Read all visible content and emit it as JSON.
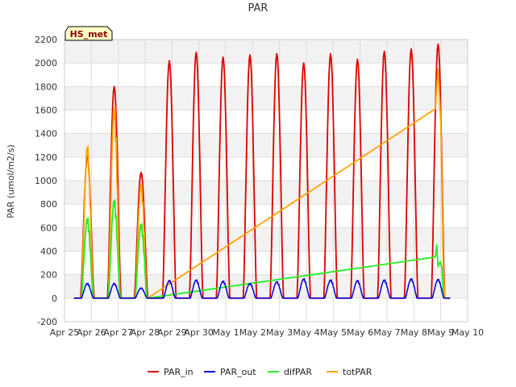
{
  "chart_data": {
    "type": "line",
    "title": "PAR",
    "xlabel": "",
    "ylabel": "PAR (umol/m2/s)",
    "badge": "HS_met",
    "xlim": [
      0,
      15
    ],
    "ylim": [
      -200,
      2200
    ],
    "yticks": [
      -200,
      0,
      200,
      400,
      600,
      800,
      1000,
      1200,
      1400,
      1600,
      1800,
      2000,
      2200
    ],
    "xticks": [
      {
        "value": 0,
        "label": "Apr 25"
      },
      {
        "value": 1,
        "label": "Apr 26"
      },
      {
        "value": 2,
        "label": "Apr 27"
      },
      {
        "value": 3,
        "label": "Apr 28"
      },
      {
        "value": 4,
        "label": "Apr 29"
      },
      {
        "value": 5,
        "label": "Apr 30"
      },
      {
        "value": 6,
        "label": "May 1"
      },
      {
        "value": 7,
        "label": "May 2"
      },
      {
        "value": 8,
        "label": "May 3"
      },
      {
        "value": 9,
        "label": "May 4"
      },
      {
        "value": 10,
        "label": "May 5"
      },
      {
        "value": 11,
        "label": "May 6"
      },
      {
        "value": 12,
        "label": "May 7"
      },
      {
        "value": 13,
        "label": "May 8"
      },
      {
        "value": 14,
        "label": "May 9"
      },
      {
        "value": 15,
        "label": "May 10"
      }
    ],
    "colors": {
      "PAR_in": "#dd0000",
      "PAR_out": "#0000dd",
      "difPAR": "#22ee22",
      "totPAR": "#ffa500"
    },
    "legend": [
      {
        "name": "PAR_in",
        "color": "#dd0000"
      },
      {
        "name": "PAR_out",
        "color": "#0000dd"
      },
      {
        "name": "difPAR",
        "color": "#22ee22"
      },
      {
        "name": "totPAR",
        "color": "#ffa500"
      }
    ],
    "series": [
      {
        "name": "PAR_in",
        "daily_peaks": [
          {
            "day": 0.85,
            "peak": 1200
          },
          {
            "day": 1.85,
            "peak": 1800
          },
          {
            "day": 2.85,
            "peak": 1070
          },
          {
            "day": 3.9,
            "peak": 2020
          },
          {
            "day": 4.9,
            "peak": 2090
          },
          {
            "day": 5.9,
            "peak": 2050
          },
          {
            "day": 6.9,
            "peak": 2070
          },
          {
            "day": 7.9,
            "peak": 2080
          },
          {
            "day": 8.9,
            "peak": 2000
          },
          {
            "day": 9.9,
            "peak": 2080
          },
          {
            "day": 10.9,
            "peak": 2030
          },
          {
            "day": 11.9,
            "peak": 2100
          },
          {
            "day": 12.9,
            "peak": 2120
          },
          {
            "day": 13.9,
            "peak": 2160
          }
        ]
      },
      {
        "name": "PAR_out",
        "daily_peaks": [
          {
            "day": 0.85,
            "peak": 130
          },
          {
            "day": 1.85,
            "peak": 130
          },
          {
            "day": 2.85,
            "peak": 90
          },
          {
            "day": 3.9,
            "peak": 155
          },
          {
            "day": 4.9,
            "peak": 160
          },
          {
            "day": 5.9,
            "peak": 150
          },
          {
            "day": 6.9,
            "peak": 130
          },
          {
            "day": 7.9,
            "peak": 145
          },
          {
            "day": 8.9,
            "peak": 170
          },
          {
            "day": 9.9,
            "peak": 160
          },
          {
            "day": 10.9,
            "peak": 155
          },
          {
            "day": 11.9,
            "peak": 160
          },
          {
            "day": 12.9,
            "peak": 170
          },
          {
            "day": 13.9,
            "peak": 165
          }
        ]
      },
      {
        "name": "difPAR",
        "daily_peaks": [
          {
            "day": 0.85,
            "peak": 700
          },
          {
            "day": 1.85,
            "peak": 860
          },
          {
            "day": 2.85,
            "peak": 650
          }
        ],
        "linear_segment": {
          "x": [
            3.1,
            13.8
          ],
          "y": [
            0,
            350
          ]
        },
        "tail": [
          {
            "x": 13.8,
            "y": 350
          },
          {
            "x": 13.85,
            "y": 450
          },
          {
            "x": 13.9,
            "y": 270
          },
          {
            "x": 13.98,
            "y": 310
          },
          {
            "x": 14.05,
            "y": 250
          },
          {
            "x": 14.1,
            "y": 0
          }
        ]
      },
      {
        "name": "totPAR",
        "daily_peaks": [
          {
            "day": 0.85,
            "peak": 1330
          },
          {
            "day": 1.85,
            "peak": 1670
          },
          {
            "day": 2.85,
            "peak": 1000
          }
        ],
        "linear_segment": {
          "x": [
            3.1,
            13.8
          ],
          "y": [
            0,
            1610
          ]
        },
        "tail": [
          {
            "x": 13.8,
            "y": 1610
          },
          {
            "x": 13.85,
            "y": 1800
          },
          {
            "x": 13.9,
            "y": 1950
          },
          {
            "x": 14.0,
            "y": 1500
          },
          {
            "x": 14.1,
            "y": 200
          },
          {
            "x": 14.15,
            "y": 0
          }
        ]
      }
    ]
  }
}
